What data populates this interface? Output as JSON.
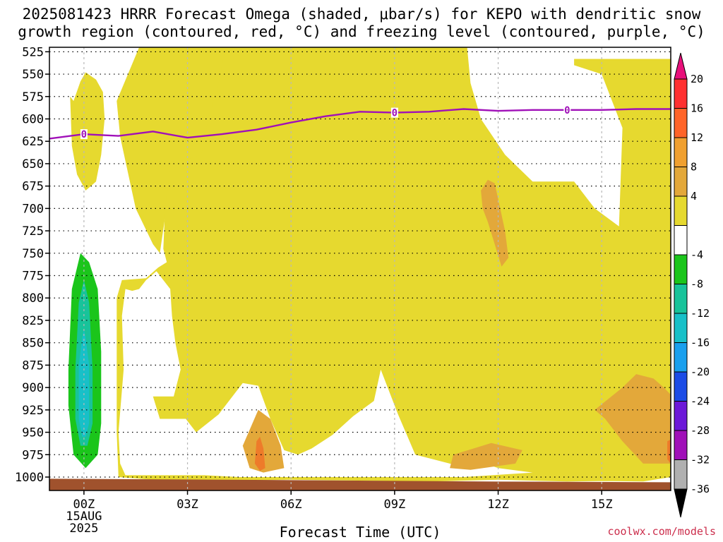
{
  "title": {
    "line1": "2025081423 HRRR Forecast Omega (shaded, μbar/s) for KEPO with dendritic snow",
    "line2": "growth region (contoured, red, °C) and freezing level (contoured, purple, °C)"
  },
  "xlabel": "Forecast Time (UTC)",
  "credit": "coolwx.com/models",
  "colors": {
    "yellow": "#e6d92f",
    "orange_light": "#e3a83a",
    "orange": "#ee7b2a",
    "green": "#1bc51b",
    "teal": "#18c39a",
    "cyan": "#18c0c8",
    "ground": "#a0522d",
    "freezing_line": "#a010b8"
  },
  "chart_data": {
    "type": "heatmap",
    "x_axis": {
      "ticks": [
        "00Z",
        "03Z",
        "06Z",
        "09Z",
        "12Z",
        "15Z"
      ],
      "tick_hours": [
        0,
        3,
        6,
        9,
        12,
        15
      ],
      "first_tick_sub": [
        "15AUG",
        "2025"
      ],
      "range_hours": [
        -1,
        17
      ]
    },
    "y_axis": {
      "ticks": [
        "525",
        "550",
        "575",
        "600",
        "625",
        "650",
        "675",
        "700",
        "725",
        "750",
        "775",
        "800",
        "825",
        "850",
        "875",
        "900",
        "925",
        "950",
        "975",
        "1000"
      ],
      "range_mb": [
        520,
        1015
      ]
    },
    "colorbar": {
      "labels": [
        "20",
        "16",
        "12",
        "8",
        "4",
        "-4",
        "-8",
        "-12",
        "-16",
        "-20",
        "-24",
        "-28",
        "-32",
        "-36"
      ],
      "colors": [
        "#e8107a",
        "#ff3030",
        "#ff6428",
        "#f0a030",
        "#e3a83a",
        "#e6d92f",
        "#ffffff",
        "#1bc51b",
        "#18c39a",
        "#18c0c8",
        "#1aa0ee",
        "#1c4ce6",
        "#6c18d8",
        "#a010b8",
        "#b0b0b0",
        "#000000"
      ]
    },
    "freezing_level": {
      "label": "0",
      "label_hours": [
        0,
        9,
        14
      ],
      "hours": [
        -1,
        0,
        1,
        2,
        3,
        4,
        5,
        6,
        7,
        8,
        9,
        10,
        11,
        12,
        13,
        14,
        15,
        16,
        17
      ],
      "pressure_mb": [
        622,
        617,
        619,
        614,
        621,
        617,
        612,
        604,
        597,
        592,
        593,
        592,
        589,
        591,
        590,
        590,
        590,
        589,
        589
      ]
    },
    "omega_regions": [
      {
        "name": "upward-4-8",
        "color": "yellow",
        "polygons": [
          [
            [
              -0.4,
              575
            ],
            [
              -0.3,
              580
            ],
            [
              -0.1,
              558
            ],
            [
              0.05,
              548
            ],
            [
              0.35,
              556
            ],
            [
              0.55,
              570
            ],
            [
              0.6,
              600
            ],
            [
              0.5,
              640
            ],
            [
              0.35,
              670
            ],
            [
              0.05,
              680
            ],
            [
              -0.2,
              662
            ],
            [
              -0.35,
              630
            ]
          ],
          [
            [
              0.95,
              580
            ],
            [
              1.6,
              520
            ],
            [
              4.2,
              520
            ],
            [
              4.2,
              612
            ],
            [
              3.9,
              630
            ],
            [
              3.65,
              640
            ],
            [
              3.6,
              650
            ],
            [
              3.25,
              660
            ],
            [
              2.75,
              664
            ],
            [
              2.55,
              667
            ],
            [
              2.4,
              697
            ],
            [
              2.2,
              750
            ],
            [
              2,
              740
            ],
            [
              1.5,
              700
            ],
            [
              1.05,
              620
            ]
          ],
          [
            [
              5.9,
              520
            ],
            [
              7.6,
              520
            ],
            [
              7.5,
              566
            ],
            [
              7.6,
              588
            ],
            [
              7.9,
              620
            ],
            [
              8.3,
              650
            ],
            [
              8.5,
              665
            ],
            [
              8.9,
              680
            ],
            [
              8.7,
              700
            ],
            [
              8.45,
              720
            ],
            [
              8.3,
              743
            ],
            [
              8,
              736
            ],
            [
              7.5,
              736
            ],
            [
              7.2,
              733
            ],
            [
              7,
              756
            ],
            [
              6.9,
              752
            ],
            [
              6.45,
              750
            ],
            [
              5.95,
              762
            ],
            [
              5.82,
              732
            ],
            [
              5.58,
              690
            ],
            [
              5.52,
              665
            ],
            [
              5.75,
              643
            ],
            [
              5.8,
              608
            ],
            [
              5.88,
              560
            ]
          ],
          [
            [
              9.9,
              520
            ],
            [
              11.1,
              520
            ],
            [
              11.2,
              560
            ],
            [
              11.5,
              600
            ],
            [
              12.2,
              640
            ],
            [
              13,
              670
            ],
            [
              14.2,
              670
            ],
            [
              14.8,
              700
            ],
            [
              15.5,
              720
            ],
            [
              15.6,
              610
            ],
            [
              15,
              550
            ],
            [
              14.2,
              540
            ],
            [
              14.2,
              533
            ],
            [
              17,
              533
            ],
            [
              17,
              1000
            ],
            [
              16.2,
              1005
            ],
            [
              14,
              1004
            ],
            [
              13,
              995
            ],
            [
              12,
              990
            ],
            [
              11.4,
              982
            ],
            [
              10.8,
              987
            ],
            [
              9.6,
              975
            ],
            [
              9.1,
              930
            ],
            [
              8.6,
              880
            ],
            [
              8.4,
              915
            ],
            [
              7.8,
              932
            ],
            [
              7.2,
              953
            ],
            [
              6.6,
              968
            ],
            [
              6.2,
              975
            ],
            [
              5.8,
              970
            ],
            [
              5.4,
              935
            ],
            [
              5.05,
              898
            ],
            [
              4.6,
              895
            ],
            [
              3.9,
              930
            ],
            [
              3.25,
              950
            ],
            [
              2.95,
              935
            ],
            [
              2.2,
              935
            ],
            [
              2,
              910
            ],
            [
              2.6,
              910
            ],
            [
              2.8,
              880
            ],
            [
              2.65,
              850
            ],
            [
              2.55,
              820
            ],
            [
              2.5,
              790
            ],
            [
              2.3,
              780
            ],
            [
              2.1,
              770
            ],
            [
              1.8,
              780
            ],
            [
              1.6,
              790
            ],
            [
              1.4,
              792
            ],
            [
              1.2,
              790
            ],
            [
              1.1,
              820
            ],
            [
              1.15,
              880
            ],
            [
              1.0,
              950
            ],
            [
              1.05,
              985
            ],
            [
              1.2,
              998
            ],
            [
              3.5,
              998
            ],
            [
              4.5,
              1000
            ],
            [
              6.5,
              1000
            ],
            [
              9.5,
              1000
            ],
            [
              11,
              1000
            ],
            [
              13,
              995
            ],
            [
              14.5,
              985
            ],
            [
              15.5,
              980
            ],
            [
              16.5,
              990
            ],
            [
              17,
              998
            ],
            [
              17,
              1000
            ],
            [
              16.2,
              1004
            ],
            [
              14,
              1005
            ],
            [
              12,
              1003
            ],
            [
              10,
              1005
            ],
            [
              8,
              1004
            ],
            [
              6,
              1003
            ],
            [
              4,
              1004
            ],
            [
              2,
              1003
            ],
            [
              1,
              1000
            ],
            [
              0.95,
              950
            ],
            [
              0.95,
              800
            ],
            [
              1.1,
              780
            ],
            [
              1.8,
              778
            ],
            [
              2.15,
              766
            ],
            [
              2.4,
              760
            ],
            [
              2.3,
              745
            ],
            [
              2.35,
              700
            ],
            [
              2.45,
              670
            ],
            [
              2.5,
              650
            ],
            [
              3.0,
              645
            ],
            [
              3.4,
              640
            ],
            [
              3.6,
              600
            ],
            [
              3.9,
              560
            ],
            [
              4.1,
              520
            ]
          ]
        ]
      },
      {
        "name": "upward-8-12",
        "color": "orange_light",
        "polygons": [
          [
            [
              11.5,
              680
            ],
            [
              11.7,
              668
            ],
            [
              11.9,
              672
            ],
            [
              12.2,
              725
            ],
            [
              12.3,
              755
            ],
            [
              12.1,
              765
            ],
            [
              11.9,
              740
            ],
            [
              11.7,
              715
            ],
            [
              11.55,
              700
            ]
          ],
          [
            [
              4.6,
              965
            ],
            [
              5.05,
              925
            ],
            [
              5.4,
              935
            ],
            [
              5.7,
              965
            ],
            [
              5.8,
              990
            ],
            [
              5.2,
              995
            ],
            [
              4.8,
              990
            ]
          ],
          [
            [
              10.7,
              975
            ],
            [
              11.8,
              962
            ],
            [
              12.7,
              970
            ],
            [
              12.5,
              985
            ],
            [
              11.2,
              992
            ],
            [
              10.6,
              990
            ]
          ],
          [
            [
              15.6,
              900
            ],
            [
              16,
              885
            ],
            [
              16.5,
              890
            ],
            [
              16.8,
              900
            ],
            [
              17,
              908
            ],
            [
              17,
              985
            ],
            [
              16.2,
              985
            ],
            [
              15.6,
              960
            ],
            [
              15.1,
              935
            ],
            [
              14.8,
              925
            ]
          ]
        ]
      },
      {
        "name": "upward-12-16",
        "color": "orange",
        "polygons": [
          [
            [
              5.0,
              960
            ],
            [
              5.1,
              955
            ],
            [
              5.2,
              968
            ],
            [
              5.25,
              990
            ],
            [
              5.1,
              993
            ],
            [
              4.95,
              985
            ]
          ],
          [
            [
              16.9,
              960
            ],
            [
              17,
              958
            ],
            [
              17,
              985
            ],
            [
              16.9,
              980
            ]
          ]
        ]
      },
      {
        "name": "downward-4-8",
        "color": "green",
        "polygons": [
          [
            [
              -0.45,
              880
            ],
            [
              -0.35,
              790
            ],
            [
              -0.1,
              750
            ],
            [
              0.15,
              760
            ],
            [
              0.4,
              790
            ],
            [
              0.5,
              860
            ],
            [
              0.5,
              940
            ],
            [
              0.4,
              975
            ],
            [
              0.05,
              990
            ],
            [
              -0.3,
              975
            ],
            [
              -0.45,
              920
            ]
          ]
        ]
      },
      {
        "name": "downward-8-12",
        "color": "teal",
        "polygons": [
          [
            [
              -0.25,
              880
            ],
            [
              -0.15,
              805
            ],
            [
              0.0,
              780
            ],
            [
              0.15,
              805
            ],
            [
              0.25,
              880
            ],
            [
              0.25,
              940
            ],
            [
              0.1,
              965
            ],
            [
              -0.1,
              965
            ],
            [
              -0.25,
              935
            ]
          ]
        ]
      },
      {
        "name": "downward-12-16",
        "color": "cyan",
        "polygons": [
          [
            [
              -0.15,
              875
            ],
            [
              -0.05,
              845
            ],
            [
              0.0,
              835
            ],
            [
              0.05,
              845
            ],
            [
              0.15,
              875
            ],
            [
              0.15,
              940
            ],
            [
              0.05,
              955
            ],
            [
              -0.05,
              955
            ],
            [
              -0.15,
              935
            ]
          ]
        ]
      }
    ],
    "ground": {
      "color": "ground",
      "top_mb": 1005
    }
  }
}
